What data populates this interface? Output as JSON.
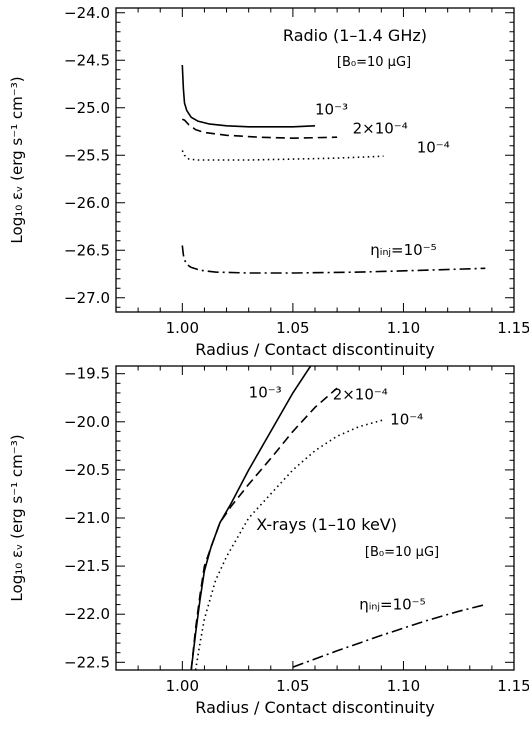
{
  "chart_data": [
    {
      "type": "line",
      "title": "Radio (1–1.4 GHz)",
      "subtitle": "[B₀=10 μG]",
      "xlabel": "Radius / Contact discontinuity",
      "ylabel": "Log₁₀ εᵥ (erg s⁻¹ cm⁻³)",
      "xlim": [
        0.97,
        1.15
      ],
      "ylim": [
        -27.15,
        -23.95
      ],
      "xticks": [
        1.0,
        1.05,
        1.1,
        1.15
      ],
      "xtick_labels": [
        "1.00",
        "1.05",
        "1.10",
        "1.15"
      ],
      "yticks": [
        -27.0,
        -26.5,
        -26.0,
        -25.5,
        -25.0,
        -24.5,
        -24.0
      ],
      "ytick_labels": [
        "−27.0",
        "−26.5",
        "−26.0",
        "−25.5",
        "−25.0",
        "−24.5",
        "−24.0"
      ],
      "series": [
        {
          "name": "10⁻³",
          "dash": "solid",
          "x": [
            1.0,
            1.0005,
            1.001,
            1.002,
            1.004,
            1.007,
            1.012,
            1.02,
            1.03,
            1.04,
            1.05,
            1.06
          ],
          "y": [
            -24.55,
            -24.8,
            -24.95,
            -25.03,
            -25.1,
            -25.14,
            -25.17,
            -25.19,
            -25.2,
            -25.2,
            -25.2,
            -25.19
          ]
        },
        {
          "name": "2×10⁻⁴",
          "dash": "dashed",
          "x": [
            1.0,
            1.001,
            1.003,
            1.006,
            1.01,
            1.02,
            1.035,
            1.05,
            1.07
          ],
          "y": [
            -25.12,
            -25.13,
            -25.18,
            -25.23,
            -25.26,
            -25.29,
            -25.31,
            -25.32,
            -25.31
          ]
        },
        {
          "name": "10⁻⁴",
          "dash": "dotted",
          "x": [
            1.0,
            1.001,
            1.003,
            1.007,
            1.015,
            1.03,
            1.05,
            1.07,
            1.091
          ],
          "y": [
            -25.45,
            -25.5,
            -25.54,
            -25.55,
            -25.55,
            -25.55,
            -25.54,
            -25.53,
            -25.51
          ]
        },
        {
          "name": "ηᵢₙⱼ=10⁻⁵",
          "dash": "dashdot",
          "x": [
            1.0,
            1.0005,
            1.001,
            1.002,
            1.004,
            1.008,
            1.015,
            1.03,
            1.05,
            1.08,
            1.11,
            1.137
          ],
          "y": [
            -26.45,
            -26.55,
            -26.6,
            -26.65,
            -26.68,
            -26.71,
            -26.73,
            -26.74,
            -26.74,
            -26.73,
            -26.71,
            -26.69
          ]
        }
      ],
      "annotations": [
        {
          "text": "10⁻³",
          "x": 1.06,
          "y": -25.07
        },
        {
          "text": "2×10⁻⁴",
          "x": 1.077,
          "y": -25.27
        },
        {
          "text": "10⁻⁴",
          "x": 1.106,
          "y": -25.47
        },
        {
          "text": "ηᵢₙⱼ=10⁻⁵",
          "x": 1.085,
          "y": -26.55
        }
      ]
    },
    {
      "type": "line",
      "title": "X-rays (1–10 keV)",
      "subtitle": "[B₀=10 μG]",
      "xlabel": "Radius / Contact discontinuity",
      "ylabel": "Log₁₀ εᵥ (erg s⁻¹ cm⁻³)",
      "xlim": [
        0.97,
        1.15
      ],
      "ylim": [
        -22.58,
        -19.42
      ],
      "xticks": [
        1.0,
        1.05,
        1.1,
        1.15
      ],
      "xtick_labels": [
        "1.00",
        "1.05",
        "1.10",
        "1.15"
      ],
      "yticks": [
        -22.5,
        -22.0,
        -21.5,
        -21.0,
        -20.5,
        -20.0,
        -19.5
      ],
      "ytick_labels": [
        "−22.5",
        "−22.0",
        "−21.5",
        "−21.0",
        "−20.5",
        "−20.0",
        "−19.5"
      ],
      "series": [
        {
          "name": "10⁻³",
          "dash": "solid",
          "x": [
            1.004,
            1.006,
            1.008,
            1.01,
            1.013,
            1.017,
            1.022,
            1.03,
            1.04,
            1.05,
            1.058
          ],
          "y": [
            -22.58,
            -22.2,
            -21.85,
            -21.55,
            -21.3,
            -21.05,
            -20.85,
            -20.5,
            -20.1,
            -19.7,
            -19.42
          ]
        },
        {
          "name": "2×10⁻⁴",
          "dash": "dashed",
          "x": [
            1.004,
            1.006,
            1.008,
            1.01,
            1.013,
            1.017,
            1.022,
            1.03,
            1.04,
            1.05,
            1.06,
            1.07
          ],
          "y": [
            -22.58,
            -22.15,
            -21.8,
            -21.5,
            -21.3,
            -21.05,
            -20.88,
            -20.65,
            -20.38,
            -20.1,
            -19.85,
            -19.65
          ]
        },
        {
          "name": "10⁻⁴",
          "dash": "dotted",
          "x": [
            1.006,
            1.008,
            1.01,
            1.015,
            1.02,
            1.03,
            1.04,
            1.05,
            1.06,
            1.07,
            1.08,
            1.091
          ],
          "y": [
            -22.58,
            -22.3,
            -22.05,
            -21.65,
            -21.4,
            -21.0,
            -20.75,
            -20.5,
            -20.3,
            -20.15,
            -20.05,
            -19.98
          ]
        },
        {
          "name": "ηᵢₙⱼ=10⁻⁵",
          "dash": "dashdot",
          "x": [
            1.05,
            1.07,
            1.09,
            1.11,
            1.125,
            1.137
          ],
          "y": [
            -22.55,
            -22.38,
            -22.22,
            -22.07,
            -21.97,
            -21.9
          ]
        }
      ],
      "annotations": [
        {
          "text": "10⁻³",
          "x": 1.03,
          "y": -19.75
        },
        {
          "text": "2×10⁻⁴",
          "x": 1.068,
          "y": -19.77
        },
        {
          "text": "10⁻⁴",
          "x": 1.094,
          "y": -20.03
        },
        {
          "text": "ηᵢₙⱼ=10⁻⁵",
          "x": 1.08,
          "y": -21.95
        }
      ]
    }
  ]
}
